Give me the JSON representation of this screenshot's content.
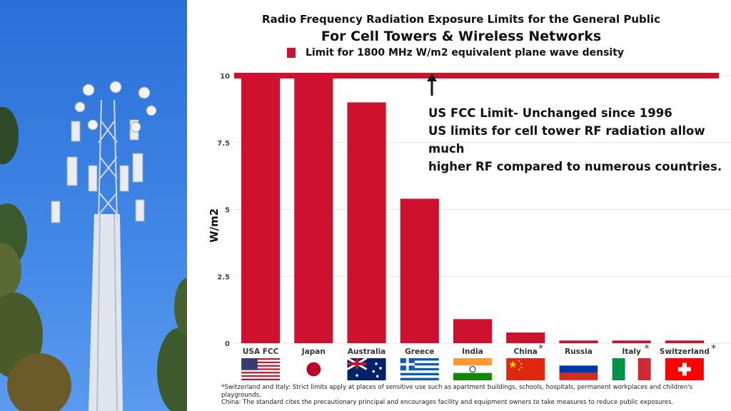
{
  "chart_data": {
    "type": "bar",
    "title": "Radio Frequency Radiation Exposure Limits for the General Public",
    "subtitle": "For Cell Towers & Wireless Networks",
    "legend": "Limit for 1800 MHz W/m2 equivalent plane wave density",
    "ylabel": "W/m2",
    "xlabel": "",
    "ylim": [
      0,
      10
    ],
    "yticks": [
      "0",
      "2.5",
      "5",
      "7.5",
      "10"
    ],
    "grid": true,
    "categories": [
      "USA FCC",
      "Japan",
      "Australia",
      "Greece",
      "India",
      "China",
      "Russia",
      "Italy",
      "Switzerland"
    ],
    "asterisks": [
      false,
      false,
      false,
      false,
      false,
      true,
      false,
      true,
      true
    ],
    "values": [
      10,
      10,
      9,
      5.4,
      0.9,
      0.4,
      0.1,
      0.1,
      0.1
    ],
    "reference_line": 10,
    "annotation_lines": [
      "US FCC  Limit- Unchanged since 1996",
      "US limits for cell tower RF radiation allow much",
      "higher RF compared to numerous countries."
    ]
  },
  "footnotes": [
    "*Switzerland and Italy: Strict limits apply at places of sensitive use such as apartment buildings, schools, hospitals, permanent workplaces and children's playgrounds.",
    "China: The standard cites the precautionary principal and encourages facility and equipment owners to take measures to reduce public exposures."
  ],
  "colors": {
    "bar": "#cf1130",
    "grid": "#e6e6e6",
    "sky": "#3f86e6"
  },
  "icons": [
    "us-flag-icon",
    "japan-flag-icon",
    "australia-flag-icon",
    "greece-flag-icon",
    "india-flag-icon",
    "china-flag-icon",
    "russia-flag-icon",
    "italy-flag-icon",
    "switzerland-flag-icon",
    "up-arrow-icon"
  ]
}
